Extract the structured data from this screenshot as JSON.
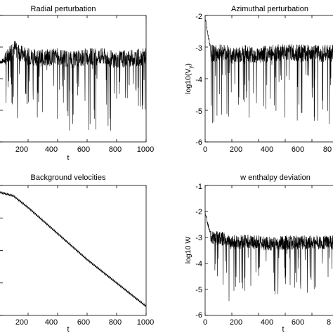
{
  "chart_data": [
    {
      "type": "line",
      "title": "Radial perturbation",
      "xlabel": "t",
      "ylabel": "",
      "xlim": [
        0,
        1000
      ],
      "ylim": [
        -6,
        -2
      ],
      "xticks": [
        "200",
        "400",
        "600",
        "800",
        "1000"
      ],
      "yticks": [],
      "grid": false,
      "series": [
        {
          "x": [
            0,
            50,
            100,
            150,
            200,
            300,
            400,
            500,
            600,
            700,
            800,
            900,
            1000
          ],
          "y": [
            -3.5,
            -3.4,
            -3.0,
            -3.2,
            -3.3,
            -3.35,
            -3.3,
            -3.4,
            -3.3,
            -3.3,
            -3.4,
            -3.35,
            -3.3
          ]
        }
      ]
    },
    {
      "type": "line",
      "title": "Azimuthal perturbation",
      "xlabel": "",
      "ylabel": "log10(V",
      "ylabel_sub": "y",
      "ylabel_end": ")",
      "xlim": [
        0,
        1000
      ],
      "ylim": [
        -6,
        -2
      ],
      "xticks": [
        "0",
        "200",
        "400",
        "600",
        "80"
      ],
      "yticks": [
        "-2",
        "-3",
        "-4",
        "-5",
        "-6"
      ],
      "grid": false,
      "series": [
        {
          "x": [
            0,
            20,
            50,
            100,
            150,
            200,
            300,
            400,
            500,
            600,
            700,
            800,
            900,
            1000
          ],
          "y": [
            -2.1,
            -2.6,
            -3.2,
            -3.2,
            -3.15,
            -3.3,
            -3.2,
            -3.25,
            -3.2,
            -3.15,
            -3.2,
            -3.2,
            -3.2,
            -3.2
          ]
        }
      ]
    },
    {
      "type": "line",
      "title": "Background velocities",
      "xlabel": "t",
      "ylabel": "",
      "xlim": [
        0,
        1000
      ],
      "xticks": [
        "200",
        "400",
        "600",
        "800",
        "1000"
      ],
      "yticks": [],
      "grid": false,
      "series": [
        {
          "x": [
            0,
            100,
            200,
            300,
            400,
            500,
            600,
            700,
            800,
            900,
            1000
          ],
          "y": [
            0.95,
            0.92,
            0.83,
            0.73,
            0.63,
            0.53,
            0.43,
            0.34,
            0.25,
            0.16,
            0.07
          ]
        }
      ]
    },
    {
      "type": "line",
      "title": "w enthalpy deviation",
      "xlabel": "t",
      "ylabel": "log10 W",
      "xlim": [
        0,
        1000
      ],
      "ylim": [
        -6,
        -1
      ],
      "xticks": [
        "0",
        "200",
        "400",
        "600",
        "8"
      ],
      "yticks": [
        "-1",
        "-2",
        "-3",
        "-4",
        "-5",
        "-6"
      ],
      "grid": false,
      "series": [
        {
          "x": [
            0,
            20,
            50,
            100,
            150,
            200,
            300,
            400,
            500,
            600,
            700,
            800,
            900,
            1000
          ],
          "y": [
            -2.0,
            -2.5,
            -3.0,
            -3.0,
            -3.1,
            -3.2,
            -3.15,
            -3.2,
            -3.25,
            -3.2,
            -3.2,
            -3.2,
            -3.2,
            -3.2
          ]
        }
      ]
    }
  ]
}
